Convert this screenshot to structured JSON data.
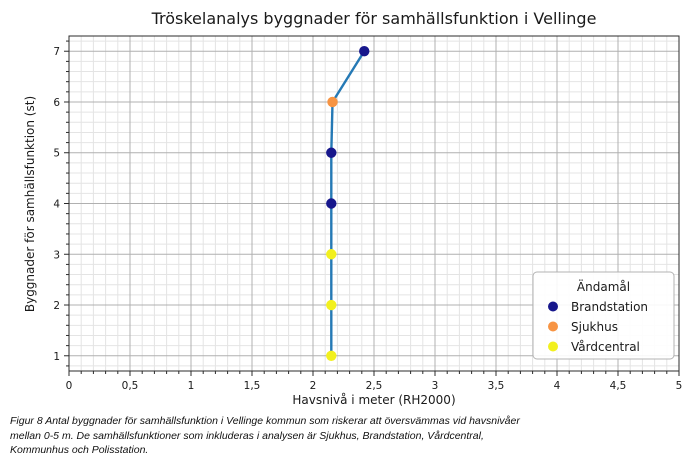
{
  "chart_data": {
    "type": "line",
    "title": "Tröskelanalys byggnader för samhällsfunktion i Vellinge",
    "xlabel": "Havsnivå i meter (RH2000)",
    "ylabel": "Byggnader för samhällsfunktion (st)",
    "xlim": [
      0,
      5
    ],
    "ylim": [
      0.7,
      7.3
    ],
    "x_major_ticks": [
      0,
      0.5,
      1,
      1.5,
      2,
      2.5,
      3,
      3.5,
      4,
      4.5,
      5
    ],
    "x_tick_labels": [
      "0",
      "0,5",
      "1",
      "1,5",
      "2",
      "2,5",
      "3",
      "3,5",
      "4",
      "4,5",
      "5"
    ],
    "y_major_ticks": [
      1,
      2,
      3,
      4,
      5,
      6,
      7
    ],
    "y_tick_labels": [
      "1",
      "2",
      "3",
      "4",
      "5",
      "6",
      "7"
    ],
    "x_minor_step": 0.1,
    "y_minor_step": 0.2,
    "grid": "major+minor",
    "line_color": "#2579b5",
    "points": [
      {
        "x": 2.15,
        "y": 1,
        "category": "Vårdcentral"
      },
      {
        "x": 2.15,
        "y": 2,
        "category": "Vårdcentral"
      },
      {
        "x": 2.15,
        "y": 3,
        "category": "Vårdcentral"
      },
      {
        "x": 2.15,
        "y": 4,
        "category": "Brandstation"
      },
      {
        "x": 2.15,
        "y": 5,
        "category": "Brandstation"
      },
      {
        "x": 2.16,
        "y": 6,
        "category": "Sjukhus"
      },
      {
        "x": 2.42,
        "y": 7,
        "category": "Brandstation"
      }
    ],
    "legend": {
      "title": "Ändamål",
      "position": "right-center",
      "entries": [
        {
          "label": "Brandstation",
          "color": "#17178c"
        },
        {
          "label": "Sjukhus",
          "color": "#f79443"
        },
        {
          "label": "Vårdcentral",
          "color": "#f2f01e"
        }
      ]
    }
  },
  "caption": {
    "lines": [
      "Figur 8 Antal byggnader för samhällsfunktion i Vellinge kommun som riskerar att översvämmas vid havsnivåer",
      "mellan 0-5 m. De samhällsfunktioner som inkluderas i analysen är Sjukhus, Brandstation, Vårdcentral,",
      "Kommunhus och Polisstation."
    ]
  },
  "colors": {
    "major_grid": "#b0b0b0",
    "minor_grid": "#e4e4e4",
    "spine": "#2b2b2b",
    "text": "#1a1a1a",
    "legend_border": "#b3b3b3",
    "legend_bg": "rgba(255,255,255,0.9)"
  }
}
